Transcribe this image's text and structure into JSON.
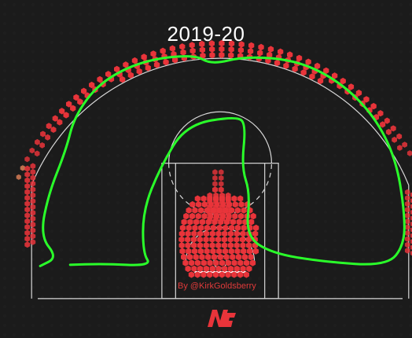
{
  "page": {
    "title": "2019-20",
    "credit": "By @KirkGoldsberry"
  },
  "colors": {
    "background": "#1a1a1a",
    "court_lines": "#d8d8d8",
    "hex_fill": "#e8343a",
    "hex_dim": "#f08a5d",
    "outline": "#2aff2a",
    "logo": "#e8343a"
  },
  "icons": {
    "logo": "ng-logo-icon"
  },
  "chart_data": {
    "type": "hexbin-shot-chart",
    "title": "2019-20",
    "xlabel": "",
    "ylabel": "",
    "grid": false,
    "legend": "none",
    "units": "feet from basket (x lateral, y toward half court)",
    "clusters": [
      {
        "name": "",
        "region": "above-break-three",
        "center": [
          0,
          25.5
        ],
        "radius": 1.8,
        "arc_from_deg": 22,
        "arc_to_deg": 158,
        "intensity": 0.8
      },
      {
        "name": "",
        "region": "left-corner-three",
        "x": -22.5,
        "y_range": [
          2,
          11
        ],
        "intensity": 0.75
      },
      {
        "name": "",
        "region": "right-corner-three",
        "x": 22.5,
        "y_range": [
          1,
          8
        ],
        "intensity": 0.7
      },
      {
        "name": "",
        "region": "restricted-area",
        "center": [
          0,
          1.5
        ],
        "radius": 4.5,
        "intensity": 1.0
      },
      {
        "name": "",
        "region": "paint-column",
        "x": 0,
        "y_range": [
          5,
          11
        ],
        "intensity": 0.85
      }
    ],
    "outline": {
      "color": "#2aff2a",
      "points": [
        [
          -21,
          -0.5
        ],
        [
          -19,
          0.5
        ],
        [
          -21,
          3
        ],
        [
          -20,
          8
        ],
        [
          -18,
          13
        ],
        [
          -17,
          17
        ],
        [
          -14,
          21
        ],
        [
          -9,
          23.5
        ],
        [
          -3,
          24.2
        ],
        [
          -1,
          23
        ],
        [
          3,
          24
        ],
        [
          9,
          23.5
        ],
        [
          14,
          21
        ],
        [
          18,
          17
        ],
        [
          20.5,
          12
        ],
        [
          21.5,
          6
        ],
        [
          21.5,
          2
        ],
        [
          19.5,
          -0.5
        ],
        [
          12,
          0
        ],
        [
          6,
          1
        ],
        [
          3,
          3
        ],
        [
          3.5,
          8
        ],
        [
          2.5,
          11
        ],
        [
          3,
          16
        ],
        [
          2,
          17
        ],
        [
          -4,
          16
        ],
        [
          -7,
          11
        ],
        [
          -9,
          6
        ],
        [
          -9,
          1
        ],
        [
          -8,
          -0.5
        ],
        [
          -14,
          -0.2
        ],
        [
          -21,
          -0.5
        ]
      ]
    }
  }
}
